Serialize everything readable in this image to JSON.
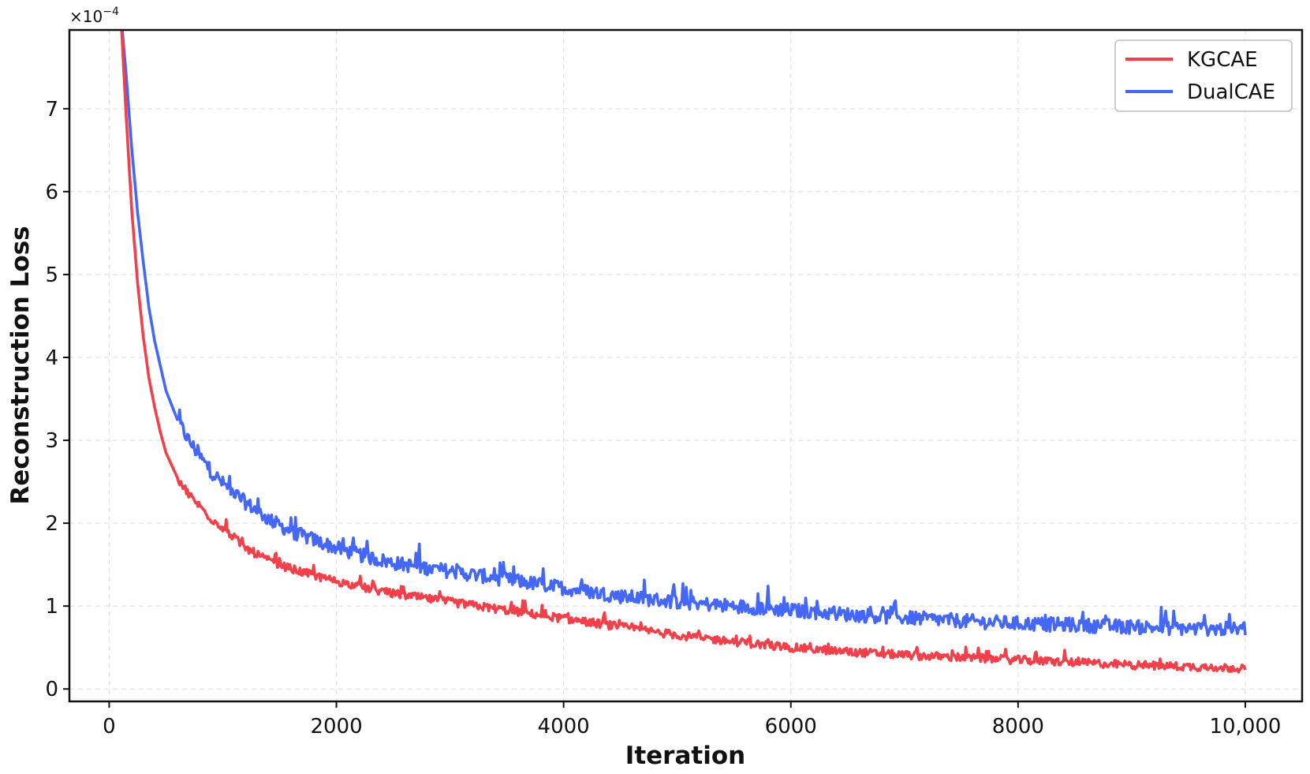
{
  "chart_data": {
    "type": "line",
    "title": "",
    "xlabel": "Iteration",
    "ylabel": "Reconstruction Loss",
    "y_scale_label": "×10",
    "y_scale_exponent": "−4",
    "xlim": [
      -350,
      10500
    ],
    "ylim": [
      -0.15,
      7.95
    ],
    "xticks": [
      0,
      2000,
      4000,
      6000,
      8000,
      10000
    ],
    "xtick_labels": [
      "0",
      "2000",
      "4000",
      "6000",
      "8000",
      "10,000"
    ],
    "yticks": [
      0,
      1,
      2,
      3,
      4,
      5,
      6,
      7
    ],
    "ytick_labels": [
      "0",
      "1",
      "2",
      "3",
      "4",
      "5",
      "6",
      "7"
    ],
    "grid": true,
    "legend_position": "top-right",
    "x": [
      100,
      150,
      200,
      250,
      300,
      350,
      400,
      450,
      500,
      600,
      700,
      800,
      900,
      1000,
      1200,
      1400,
      1600,
      1800,
      2000,
      2250,
      2500,
      2750,
      3000,
      3250,
      3500,
      3750,
      4000,
      4500,
      5000,
      5500,
      6000,
      6500,
      7000,
      7500,
      8000,
      8500,
      9000,
      9500,
      10000
    ],
    "series": [
      {
        "name": "KGCAE",
        "color": "#f2404a",
        "values": [
          8.2,
          6.9,
          5.75,
          4.9,
          4.25,
          3.75,
          3.4,
          3.1,
          2.85,
          2.55,
          2.35,
          2.2,
          2.05,
          1.95,
          1.7,
          1.55,
          1.45,
          1.37,
          1.3,
          1.22,
          1.15,
          1.1,
          1.05,
          1.0,
          0.95,
          0.9,
          0.85,
          0.75,
          0.65,
          0.57,
          0.5,
          0.45,
          0.41,
          0.38,
          0.35,
          0.32,
          0.29,
          0.27,
          0.25
        ]
      },
      {
        "name": "DualCAE",
        "color": "#4567f5",
        "values": [
          8.2,
          7.4,
          6.5,
          5.75,
          5.15,
          4.6,
          4.2,
          3.9,
          3.6,
          3.25,
          3.0,
          2.8,
          2.62,
          2.48,
          2.25,
          2.05,
          1.9,
          1.8,
          1.7,
          1.6,
          1.52,
          1.47,
          1.42,
          1.37,
          1.32,
          1.27,
          1.22,
          1.12,
          1.05,
          1.0,
          0.95,
          0.9,
          0.86,
          0.82,
          0.79,
          0.77,
          0.75,
          0.73,
          0.72
        ]
      }
    ]
  }
}
